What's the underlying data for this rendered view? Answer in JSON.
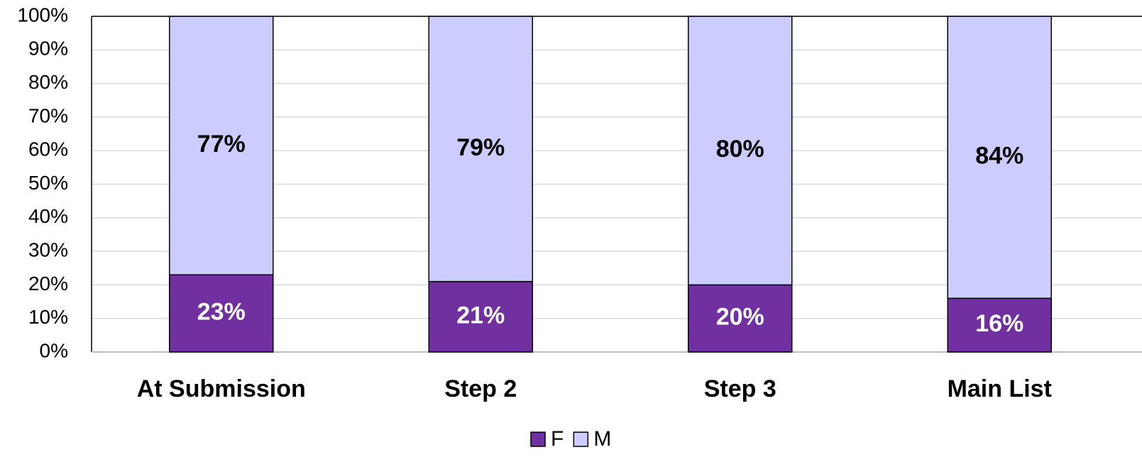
{
  "chart_data": {
    "type": "stacked_bar",
    "categories": [
      "At Submission",
      "Step 2",
      "Step 3",
      "Main List"
    ],
    "series": [
      {
        "name": "F",
        "color": "#7030a0",
        "values": [
          23,
          21,
          20,
          16
        ],
        "value_labels": [
          "23%",
          "21%",
          "20%",
          "16%"
        ]
      },
      {
        "name": "M",
        "color": "#ccccff",
        "values": [
          77,
          79,
          80,
          84
        ],
        "value_labels": [
          "77%",
          "79%",
          "80%",
          "84%"
        ]
      }
    ],
    "ylim": [
      0,
      100
    ],
    "yticks": [
      {
        "value": 0,
        "label": "0%"
      },
      {
        "value": 10,
        "label": "10%"
      },
      {
        "value": 20,
        "label": "20%"
      },
      {
        "value": 30,
        "label": "30%"
      },
      {
        "value": 40,
        "label": "40%"
      },
      {
        "value": 50,
        "label": "50%"
      },
      {
        "value": 60,
        "label": "60%"
      },
      {
        "value": 70,
        "label": "70%"
      },
      {
        "value": 80,
        "label": "80%"
      },
      {
        "value": 90,
        "label": "90%"
      },
      {
        "value": 100,
        "label": "100%"
      }
    ],
    "grid": true,
    "legend": "bottom"
  }
}
